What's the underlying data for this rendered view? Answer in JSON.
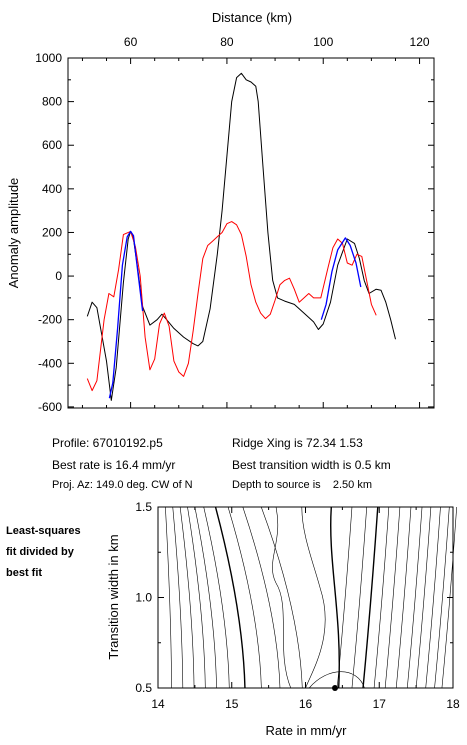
{
  "chart_data": [
    {
      "type": "line",
      "x_axis_label": "Distance (km)",
      "y_axis_label": "Anomaly amplitude",
      "x_ticks": [
        "60",
        "80",
        "100",
        "120"
      ],
      "y_ticks": [
        "1000",
        "800",
        "600",
        "400",
        "200",
        "0",
        "-200",
        "-400",
        "-600"
      ],
      "xlim": [
        47,
        123
      ],
      "ylim": [
        -605,
        1000
      ],
      "grid": false,
      "series": [
        {
          "color": "#000000",
          "points": [
            [
              51,
              -185
            ],
            [
              52,
              -120
            ],
            [
              53,
              -145
            ],
            [
              55,
              -390
            ],
            [
              56,
              -570
            ],
            [
              57,
              -420
            ],
            [
              58.5,
              -30
            ],
            [
              59.5,
              170
            ],
            [
              60,
              205
            ],
            [
              60.5,
              185
            ],
            [
              61.5,
              30
            ],
            [
              62.5,
              -140
            ],
            [
              64,
              -225
            ],
            [
              65.5,
              -200
            ],
            [
              66.5,
              -175
            ],
            [
              67.5,
              -200
            ],
            [
              69,
              -240
            ],
            [
              71,
              -280
            ],
            [
              73,
              -310
            ],
            [
              74,
              -320
            ],
            [
              75,
              -300
            ],
            [
              76.5,
              -150
            ],
            [
              78,
              100
            ],
            [
              79,
              300
            ],
            [
              80,
              550
            ],
            [
              81,
              800
            ],
            [
              82,
              910
            ],
            [
              83,
              930
            ],
            [
              84,
              900
            ],
            [
              85,
              890
            ],
            [
              86,
              870
            ],
            [
              86.5,
              800
            ],
            [
              87.5,
              500
            ],
            [
              88.5,
              200
            ],
            [
              89.5,
              -20
            ],
            [
              90.5,
              -100
            ],
            [
              92,
              -115
            ],
            [
              94,
              -130
            ],
            [
              96,
              -170
            ],
            [
              98,
              -210
            ],
            [
              99,
              -245
            ],
            [
              100,
              -220
            ],
            [
              101.5,
              -120
            ],
            [
              103,
              50
            ],
            [
              105,
              170
            ],
            [
              106.5,
              150
            ],
            [
              107.5,
              80
            ],
            [
              108.5,
              -20
            ],
            [
              109.5,
              -80
            ],
            [
              111,
              -60
            ],
            [
              112,
              -65
            ],
            [
              113,
              -120
            ],
            [
              114,
              -200
            ],
            [
              115,
              -290
            ]
          ]
        },
        {
          "color": "#ff0000",
          "points": [
            [
              51,
              -470
            ],
            [
              52,
              -525
            ],
            [
              53,
              -480
            ],
            [
              54.5,
              -200
            ],
            [
              55.5,
              -80
            ],
            [
              56.5,
              -95
            ],
            [
              57.5,
              30
            ],
            [
              58.5,
              190
            ],
            [
              60,
              205
            ],
            [
              61,
              135
            ],
            [
              62,
              0
            ],
            [
              63,
              -280
            ],
            [
              64,
              -430
            ],
            [
              65,
              -380
            ],
            [
              66,
              -220
            ],
            [
              67,
              -170
            ],
            [
              68,
              -230
            ],
            [
              69,
              -390
            ],
            [
              70,
              -440
            ],
            [
              71,
              -460
            ],
            [
              72,
              -400
            ],
            [
              73,
              -250
            ],
            [
              74,
              -80
            ],
            [
              75,
              80
            ],
            [
              76,
              140
            ],
            [
              77,
              160
            ],
            [
              78,
              180
            ],
            [
              79,
              200
            ],
            [
              80,
              240
            ],
            [
              81,
              250
            ],
            [
              82,
              235
            ],
            [
              83,
              190
            ],
            [
              84,
              90
            ],
            [
              85,
              -40
            ],
            [
              86,
              -120
            ],
            [
              87,
              -170
            ],
            [
              88,
              -195
            ],
            [
              89,
              -175
            ],
            [
              90,
              -110
            ],
            [
              91,
              -40
            ],
            [
              92,
              -20
            ],
            [
              93,
              -10
            ],
            [
              94,
              -60
            ],
            [
              95,
              -120
            ],
            [
              96,
              -100
            ],
            [
              97,
              -80
            ],
            [
              98,
              -100
            ],
            [
              99.5,
              -100
            ],
            [
              101,
              40
            ],
            [
              102,
              130
            ],
            [
              103,
              170
            ],
            [
              104,
              150
            ],
            [
              105,
              60
            ],
            [
              106,
              50
            ],
            [
              107,
              100
            ],
            [
              108,
              90
            ],
            [
              109,
              -20
            ],
            [
              110,
              -130
            ],
            [
              111,
              -180
            ]
          ]
        },
        {
          "color": "#0000ff",
          "segments": [
            [
              [
                55.6,
                -560
              ],
              [
                56.3,
                -490
              ],
              [
                57.3,
                -240
              ],
              [
                58.3,
                50
              ],
              [
                59.3,
                180
              ],
              [
                60,
                205
              ],
              [
                60.6,
                185
              ],
              [
                61.5,
                20
              ],
              [
                62.5,
                -160
              ]
            ],
            [
              [
                99.6,
                -200
              ],
              [
                100.6,
                -130
              ],
              [
                101.8,
                20
              ],
              [
                103,
                120
              ],
              [
                104.6,
                175
              ],
              [
                105.6,
                140
              ],
              [
                106.8,
                60
              ],
              [
                107.8,
                -50
              ]
            ]
          ]
        }
      ]
    },
    {
      "type": "contour",
      "x_axis_label": "Rate in mm/yr",
      "y_axis_label": "Transition width in km",
      "x_ticks": [
        "14",
        "15",
        "16",
        "17",
        "18"
      ],
      "y_ticks": [
        "1.5",
        "1.0",
        "0.5"
      ],
      "xlim": [
        14,
        18
      ],
      "ylim": [
        0.5,
        1.5
      ],
      "best_fit": {
        "rate": 16.4,
        "width": 0.5
      }
    }
  ],
  "info": {
    "profile": "Profile: 67010192.p5",
    "best_rate": "Best rate is 16.4 mm/yr",
    "proj_az": "Proj. Az: 149.0 deg. CW of N",
    "ridge_xing": "Ridge Xing is 72.34 1.53",
    "best_width": "Best transition width is 0.5 km",
    "depth": "Depth to source is    2.50 km"
  },
  "side_note": [
    "Least-squares",
    "fit divided by",
    "best fit"
  ]
}
